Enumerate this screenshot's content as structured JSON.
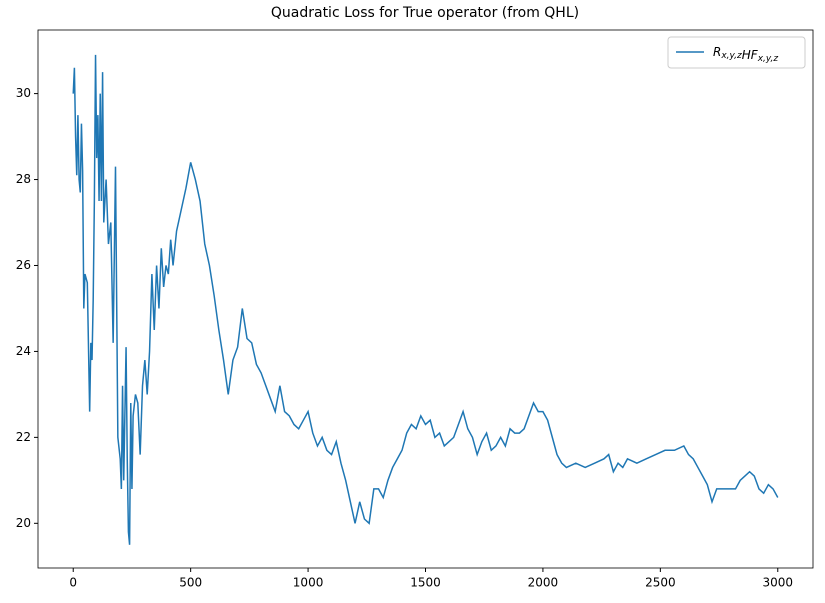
{
  "chart_data": {
    "type": "line",
    "title": "Quadratic Loss for True operator (from QHL)",
    "x": [
      0,
      5,
      10,
      15,
      20,
      25,
      30,
      35,
      40,
      45,
      50,
      60,
      70,
      75,
      80,
      85,
      90,
      95,
      100,
      105,
      110,
      115,
      120,
      125,
      130,
      140,
      150,
      160,
      170,
      180,
      190,
      200,
      205,
      210,
      215,
      225,
      230,
      235,
      240,
      245,
      250,
      255,
      265,
      275,
      285,
      295,
      305,
      315,
      325,
      335,
      345,
      355,
      365,
      375,
      385,
      395,
      405,
      415,
      425,
      440,
      460,
      480,
      500,
      520,
      540,
      560,
      580,
      600,
      620,
      640,
      660,
      680,
      700,
      720,
      740,
      760,
      780,
      800,
      820,
      840,
      860,
      880,
      900,
      920,
      940,
      960,
      980,
      1000,
      1020,
      1040,
      1060,
      1080,
      1100,
      1120,
      1140,
      1160,
      1180,
      1200,
      1220,
      1240,
      1260,
      1280,
      1300,
      1320,
      1340,
      1360,
      1380,
      1400,
      1420,
      1440,
      1460,
      1480,
      1500,
      1520,
      1540,
      1560,
      1580,
      1600,
      1620,
      1640,
      1660,
      1680,
      1700,
      1720,
      1740,
      1760,
      1780,
      1800,
      1820,
      1840,
      1860,
      1880,
      1900,
      1920,
      1940,
      1960,
      1980,
      2000,
      2020,
      2040,
      2060,
      2080,
      2100,
      2140,
      2180,
      2220,
      2260,
      2280,
      2300,
      2320,
      2340,
      2360,
      2400,
      2440,
      2480,
      2520,
      2560,
      2600,
      2620,
      2640,
      2660,
      2680,
      2700,
      2720,
      2740,
      2780,
      2820,
      2840,
      2860,
      2880,
      2900,
      2920,
      2940,
      2960,
      2980,
      3000
    ],
    "series": [
      {
        "name": "R_{x,y,z}HF_{x,y,z}",
        "color": "#1f77b4",
        "values": [
          30.0,
          30.6,
          29.0,
          28.1,
          29.5,
          28.0,
          27.7,
          29.3,
          28.2,
          25.0,
          25.8,
          25.6,
          22.6,
          24.2,
          23.8,
          25.2,
          27.5,
          30.9,
          28.5,
          29.5,
          27.5,
          30.0,
          27.5,
          30.5,
          27.0,
          28.0,
          26.5,
          27.0,
          24.2,
          28.3,
          22.0,
          21.5,
          20.8,
          23.2,
          21.0,
          24.1,
          21.5,
          19.8,
          19.5,
          22.8,
          20.8,
          22.5,
          23.0,
          22.8,
          21.6,
          23.2,
          23.8,
          23.0,
          24.0,
          25.8,
          24.5,
          26.0,
          25.0,
          26.4,
          25.5,
          26.0,
          25.8,
          26.6,
          26.0,
          26.8,
          27.3,
          27.8,
          28.4,
          28.0,
          27.5,
          26.5,
          26.0,
          25.3,
          24.5,
          23.8,
          23.0,
          23.8,
          24.1,
          25.0,
          24.3,
          24.2,
          23.7,
          23.5,
          23.2,
          22.9,
          22.6,
          23.2,
          22.6,
          22.5,
          22.3,
          22.2,
          22.4,
          22.6,
          22.1,
          21.8,
          22.0,
          21.7,
          21.6,
          21.9,
          21.4,
          21.0,
          20.5,
          20.0,
          20.5,
          20.1,
          20.0,
          20.8,
          20.8,
          20.6,
          21.0,
          21.3,
          21.5,
          21.7,
          22.1,
          22.3,
          22.2,
          22.5,
          22.3,
          22.4,
          22.0,
          22.1,
          21.8,
          21.9,
          22.0,
          22.3,
          22.6,
          22.2,
          22.0,
          21.6,
          21.9,
          22.1,
          21.7,
          21.8,
          22.0,
          21.8,
          22.2,
          22.1,
          22.1,
          22.2,
          22.5,
          22.8,
          22.6,
          22.6,
          22.4,
          22.0,
          21.6,
          21.4,
          21.3,
          21.4,
          21.3,
          21.4,
          21.5,
          21.6,
          21.2,
          21.4,
          21.3,
          21.5,
          21.4,
          21.5,
          21.6,
          21.7,
          21.7,
          21.8,
          21.6,
          21.5,
          21.3,
          21.1,
          20.9,
          20.5,
          20.8,
          20.8,
          20.8,
          21.0,
          21.1,
          21.2,
          21.1,
          20.8,
          20.7,
          20.9,
          20.8,
          20.6
        ]
      }
    ],
    "xlim": [
      -150,
      3150
    ],
    "ylim": [
      18.96,
      31.48
    ],
    "xticks": [
      0,
      500,
      1000,
      1500,
      2000,
      2500,
      3000
    ],
    "yticks": [
      20,
      22,
      24,
      26,
      28,
      30
    ],
    "grid": false,
    "legend": "upper right"
  }
}
